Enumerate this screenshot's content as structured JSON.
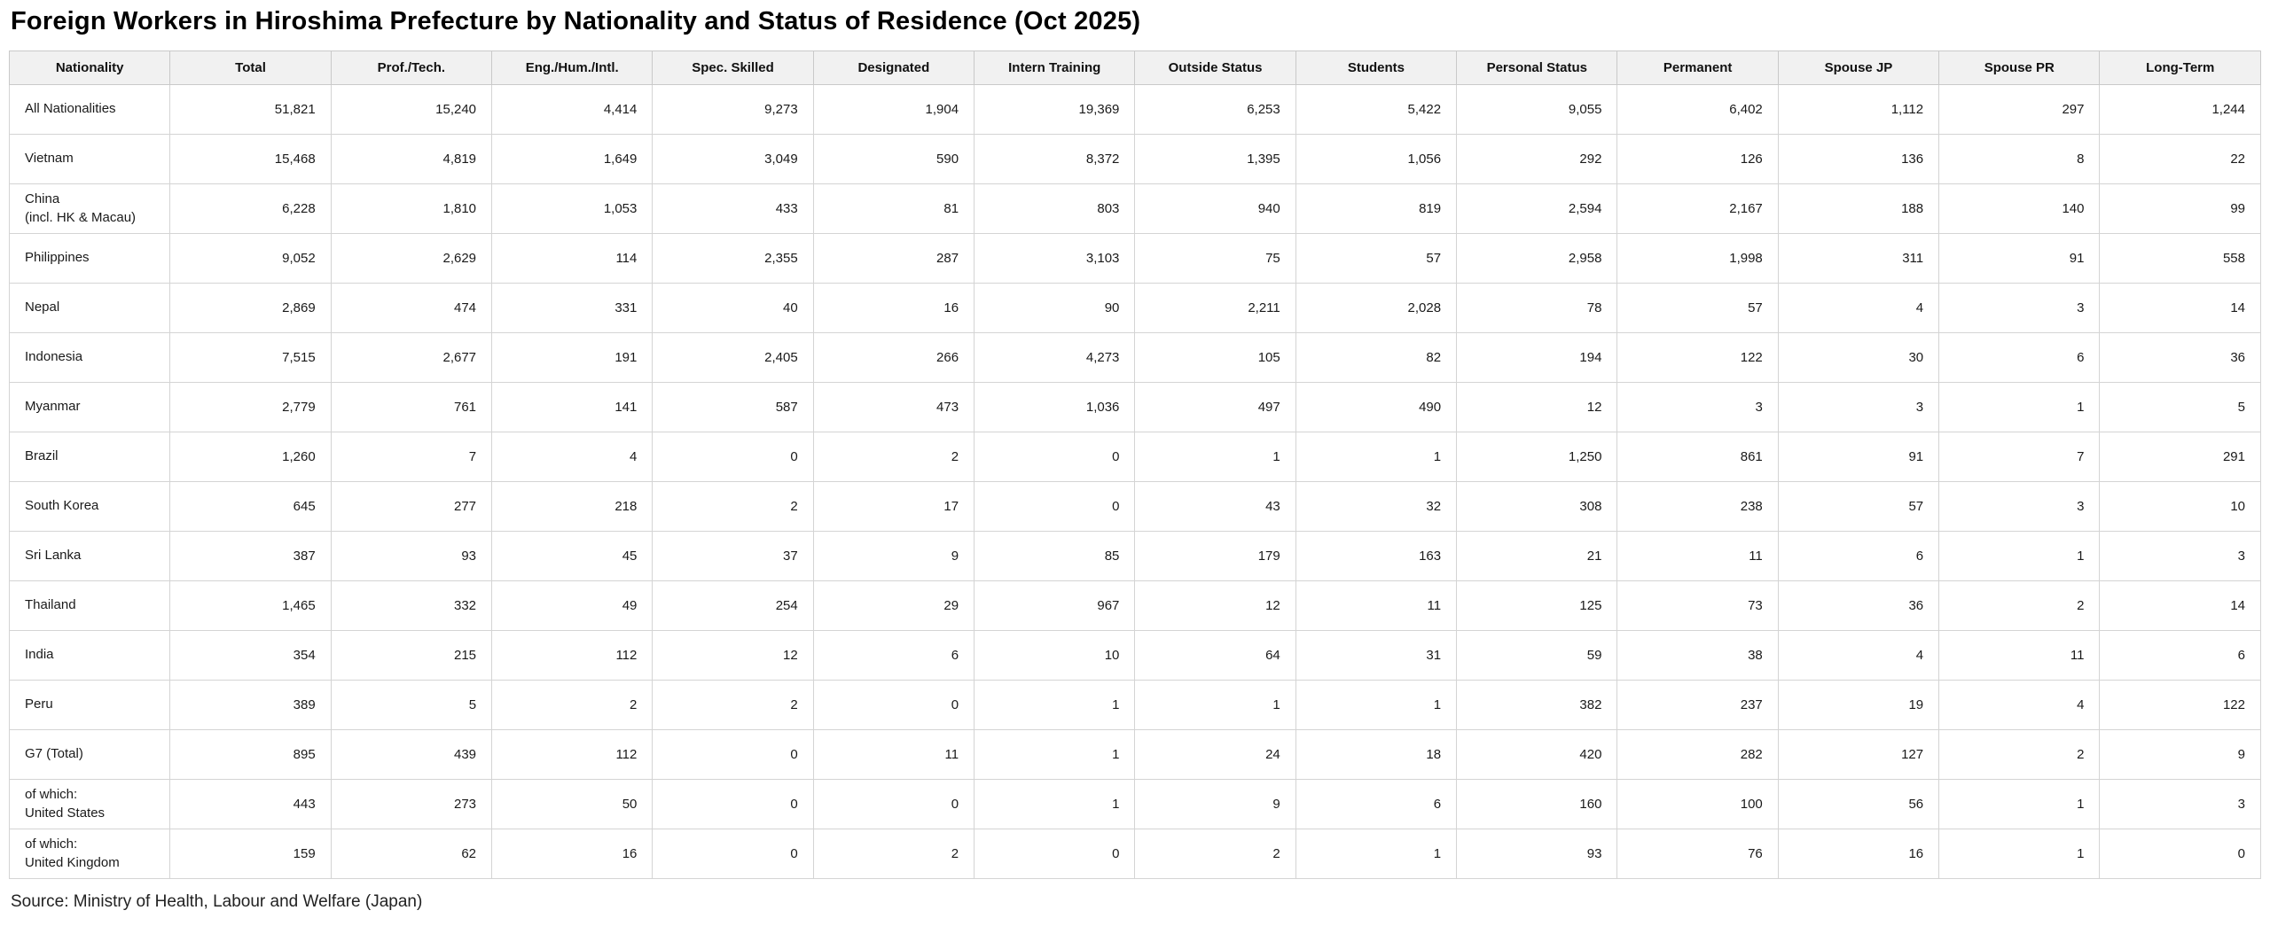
{
  "title": "Foreign Workers in Hiroshima Prefecture by Nationality and Status of Residence (Oct 2025)",
  "source": "Source: Ministry of Health, Labour and Welfare (Japan)",
  "colors": {
    "header_bg": "#f1f1f1",
    "border": "#d4d4d4",
    "text": "#1a1a1a"
  },
  "table": {
    "columns": [
      "Nationality",
      "Total",
      "Prof./Tech.",
      "Eng./Hum./Intl.",
      "Spec. Skilled",
      "Designated",
      "Intern Training",
      "Outside Status",
      "Students",
      "Personal Status",
      "Permanent",
      "Spouse JP",
      "Spouse PR",
      "Long-Term"
    ],
    "rows": [
      {
        "label": "All Nationalities",
        "values": [
          51821,
          15240,
          4414,
          9273,
          1904,
          19369,
          6253,
          5422,
          9055,
          6402,
          1112,
          297,
          1244
        ]
      },
      {
        "label": "Vietnam",
        "values": [
          15468,
          4819,
          1649,
          3049,
          590,
          8372,
          1395,
          1056,
          292,
          126,
          136,
          8,
          22
        ]
      },
      {
        "label": "China\n(incl. HK & Macau)",
        "values": [
          6228,
          1810,
          1053,
          433,
          81,
          803,
          940,
          819,
          2594,
          2167,
          188,
          140,
          99
        ]
      },
      {
        "label": "Philippines",
        "values": [
          9052,
          2629,
          114,
          2355,
          287,
          3103,
          75,
          57,
          2958,
          1998,
          311,
          91,
          558
        ]
      },
      {
        "label": "Nepal",
        "values": [
          2869,
          474,
          331,
          40,
          16,
          90,
          2211,
          2028,
          78,
          57,
          4,
          3,
          14
        ]
      },
      {
        "label": "Indonesia",
        "values": [
          7515,
          2677,
          191,
          2405,
          266,
          4273,
          105,
          82,
          194,
          122,
          30,
          6,
          36
        ]
      },
      {
        "label": "Myanmar",
        "values": [
          2779,
          761,
          141,
          587,
          473,
          1036,
          497,
          490,
          12,
          3,
          3,
          1,
          5
        ]
      },
      {
        "label": "Brazil",
        "values": [
          1260,
          7,
          4,
          0,
          2,
          0,
          1,
          1,
          1250,
          861,
          91,
          7,
          291
        ]
      },
      {
        "label": "South Korea",
        "values": [
          645,
          277,
          218,
          2,
          17,
          0,
          43,
          32,
          308,
          238,
          57,
          3,
          10
        ]
      },
      {
        "label": "Sri Lanka",
        "values": [
          387,
          93,
          45,
          37,
          9,
          85,
          179,
          163,
          21,
          11,
          6,
          1,
          3
        ]
      },
      {
        "label": "Thailand",
        "values": [
          1465,
          332,
          49,
          254,
          29,
          967,
          12,
          11,
          125,
          73,
          36,
          2,
          14
        ]
      },
      {
        "label": "India",
        "values": [
          354,
          215,
          112,
          12,
          6,
          10,
          64,
          31,
          59,
          38,
          4,
          11,
          6
        ]
      },
      {
        "label": "Peru",
        "values": [
          389,
          5,
          2,
          2,
          0,
          1,
          1,
          1,
          382,
          237,
          19,
          4,
          122
        ]
      },
      {
        "label": "G7 (Total)",
        "values": [
          895,
          439,
          112,
          0,
          11,
          1,
          24,
          18,
          420,
          282,
          127,
          2,
          9
        ]
      },
      {
        "label": "of which:\nUnited States",
        "values": [
          443,
          273,
          50,
          0,
          0,
          1,
          9,
          6,
          160,
          100,
          56,
          1,
          3
        ]
      },
      {
        "label": "of which:\nUnited Kingdom",
        "values": [
          159,
          62,
          16,
          0,
          2,
          0,
          2,
          1,
          93,
          76,
          16,
          1,
          0
        ]
      }
    ]
  },
  "chart_data": {
    "type": "table",
    "title": "Foreign Workers in Hiroshima Prefecture by Nationality and Status of Residence (Oct 2025)",
    "columns": [
      "Nationality",
      "Total",
      "Prof./Tech.",
      "Eng./Hum./Intl.",
      "Spec. Skilled",
      "Designated",
      "Intern Training",
      "Outside Status",
      "Students",
      "Personal Status",
      "Permanent",
      "Spouse JP",
      "Spouse PR",
      "Long-Term"
    ],
    "rows": [
      [
        "All Nationalities",
        51821,
        15240,
        4414,
        9273,
        1904,
        19369,
        6253,
        5422,
        9055,
        6402,
        1112,
        297,
        1244
      ],
      [
        "Vietnam",
        15468,
        4819,
        1649,
        3049,
        590,
        8372,
        1395,
        1056,
        292,
        126,
        136,
        8,
        22
      ],
      [
        "China (incl. HK & Macau)",
        6228,
        1810,
        1053,
        433,
        81,
        803,
        940,
        819,
        2594,
        2167,
        188,
        140,
        99
      ],
      [
        "Philippines",
        9052,
        2629,
        114,
        2355,
        287,
        3103,
        75,
        57,
        2958,
        1998,
        311,
        91,
        558
      ],
      [
        "Nepal",
        2869,
        474,
        331,
        40,
        16,
        90,
        2211,
        2028,
        78,
        57,
        4,
        3,
        14
      ],
      [
        "Indonesia",
        7515,
        2677,
        191,
        2405,
        266,
        4273,
        105,
        82,
        194,
        122,
        30,
        6,
        36
      ],
      [
        "Myanmar",
        2779,
        761,
        141,
        587,
        473,
        1036,
        497,
        490,
        12,
        3,
        3,
        1,
        5
      ],
      [
        "Brazil",
        1260,
        7,
        4,
        0,
        2,
        0,
        1,
        1,
        1250,
        861,
        91,
        7,
        291
      ],
      [
        "South Korea",
        645,
        277,
        218,
        2,
        17,
        0,
        43,
        32,
        308,
        238,
        57,
        3,
        10
      ],
      [
        "Sri Lanka",
        387,
        93,
        45,
        37,
        9,
        85,
        179,
        163,
        21,
        11,
        6,
        1,
        3
      ],
      [
        "Thailand",
        1465,
        332,
        49,
        254,
        29,
        967,
        12,
        11,
        125,
        73,
        36,
        2,
        14
      ],
      [
        "India",
        354,
        215,
        112,
        12,
        6,
        10,
        64,
        31,
        59,
        38,
        4,
        11,
        6
      ],
      [
        "Peru",
        389,
        5,
        2,
        2,
        0,
        1,
        1,
        1,
        382,
        237,
        19,
        4,
        122
      ],
      [
        "G7 (Total)",
        895,
        439,
        112,
        0,
        11,
        1,
        24,
        18,
        420,
        282,
        127,
        2,
        9
      ],
      [
        "of which: United States",
        443,
        273,
        50,
        0,
        0,
        1,
        9,
        6,
        160,
        100,
        56,
        1,
        3
      ],
      [
        "of which: United Kingdom",
        159,
        62,
        16,
        0,
        2,
        0,
        2,
        1,
        93,
        76,
        16,
        1,
        0
      ]
    ]
  }
}
